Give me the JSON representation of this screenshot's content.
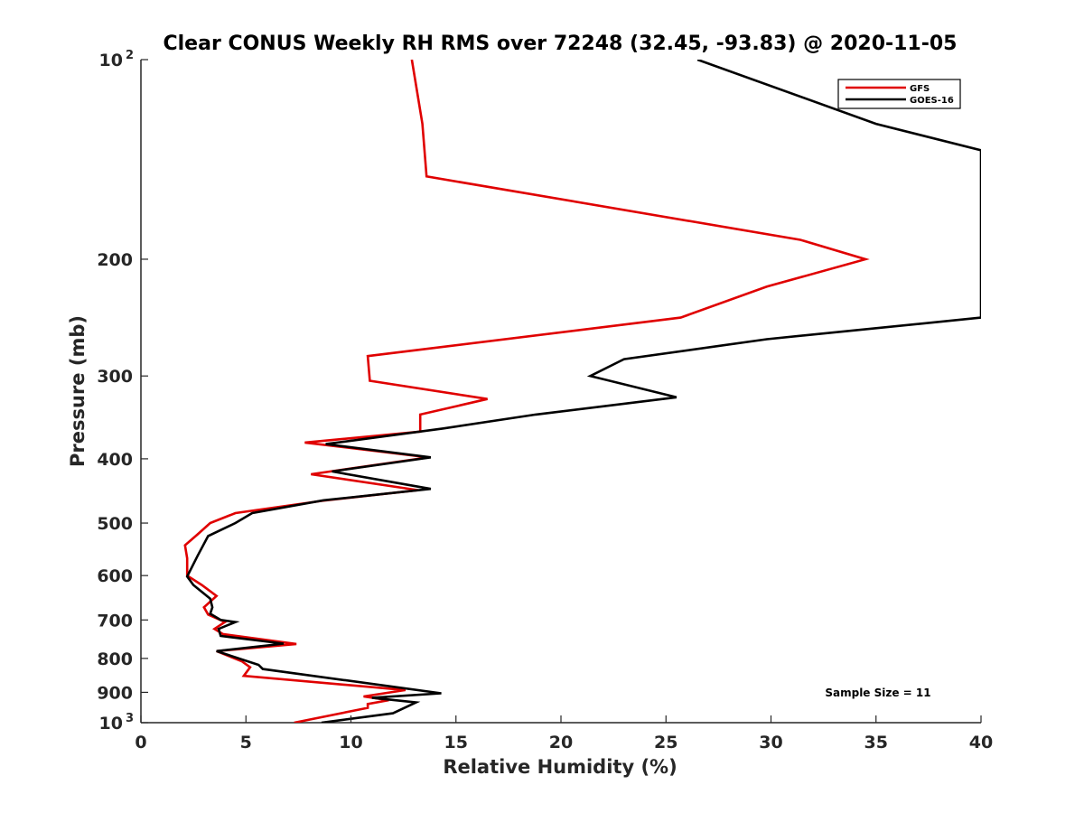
{
  "chart_data": {
    "type": "line",
    "title": "Clear CONUS Weekly RH RMS over 72248 (32.45, -93.83) @ 2020-11-05",
    "xlabel": "Relative Humidity (%)",
    "ylabel": "Pressure (mb)",
    "xlim": [
      0,
      40
    ],
    "ylim": [
      100,
      1000
    ],
    "y_scale": "log",
    "y_reversed": true,
    "grid": false,
    "legend_position": "top-right",
    "x_ticks": [
      0,
      5,
      10,
      15,
      20,
      25,
      30,
      35,
      40
    ],
    "x_tick_labels": [
      "0",
      "5",
      "10",
      "15",
      "20",
      "25",
      "30",
      "35",
      "40"
    ],
    "y_ticks": [
      100,
      200,
      300,
      400,
      500,
      600,
      700,
      800,
      900,
      1000
    ],
    "y_tick_labels": [
      {
        "base": "10",
        "exp": "2"
      },
      {
        "base": "200",
        "exp": ""
      },
      {
        "base": "300",
        "exp": ""
      },
      {
        "base": "400",
        "exp": ""
      },
      {
        "base": "500",
        "exp": ""
      },
      {
        "base": "600",
        "exp": ""
      },
      {
        "base": "700",
        "exp": ""
      },
      {
        "base": "800",
        "exp": ""
      },
      {
        "base": "900",
        "exp": ""
      },
      {
        "base": "10",
        "exp": "3"
      }
    ],
    "series": [
      {
        "name": "GFS",
        "color": "#e00000",
        "points": [
          [
            12.9,
            100
          ],
          [
            13.4,
            125
          ],
          [
            13.6,
            150
          ],
          [
            31.4,
            187
          ],
          [
            34.5,
            200
          ],
          [
            29.8,
            220
          ],
          [
            25.7,
            245
          ],
          [
            10.8,
            280
          ],
          [
            10.9,
            305
          ],
          [
            16.5,
            325
          ],
          [
            13.3,
            343
          ],
          [
            13.3,
            364
          ],
          [
            7.8,
            378
          ],
          [
            13.7,
            398
          ],
          [
            8.1,
            422
          ],
          [
            13.2,
            446
          ],
          [
            8.6,
            463
          ],
          [
            4.5,
            483
          ],
          [
            3.3,
            500
          ],
          [
            2.7,
            520
          ],
          [
            2.1,
            540
          ],
          [
            2.2,
            565
          ],
          [
            2.2,
            600
          ],
          [
            2.9,
            620
          ],
          [
            3.6,
            644
          ],
          [
            3.0,
            670
          ],
          [
            3.2,
            687
          ],
          [
            4.0,
            705
          ],
          [
            3.5,
            722
          ],
          [
            3.9,
            735
          ],
          [
            7.4,
            761
          ],
          [
            3.6,
            780
          ],
          [
            4.8,
            808
          ],
          [
            5.2,
            825
          ],
          [
            4.9,
            850
          ],
          [
            12.6,
            893
          ],
          [
            10.6,
            913
          ],
          [
            11.8,
            925
          ],
          [
            10.8,
            937
          ],
          [
            10.8,
            950
          ],
          [
            7.3,
            1000
          ]
        ]
      },
      {
        "name": "GOES-16",
        "color": "#000000",
        "points": [
          [
            26.5,
            100
          ],
          [
            35,
            125
          ],
          [
            40,
            137
          ],
          [
            40,
            245
          ],
          [
            29.8,
            264
          ],
          [
            23.0,
            283
          ],
          [
            21.4,
            300
          ],
          [
            25.5,
            323
          ],
          [
            18.8,
            343
          ],
          [
            14.4,
            360
          ],
          [
            8.8,
            380
          ],
          [
            13.8,
            398
          ],
          [
            9.1,
            418
          ],
          [
            13.8,
            444
          ],
          [
            8.7,
            462
          ],
          [
            5.3,
            483
          ],
          [
            4.5,
            500
          ],
          [
            3.2,
            523
          ],
          [
            2.7,
            560
          ],
          [
            2.2,
            602
          ],
          [
            2.5,
            620
          ],
          [
            3.3,
            650
          ],
          [
            3.4,
            670
          ],
          [
            3.3,
            685
          ],
          [
            3.8,
            700
          ],
          [
            4.5,
            705
          ],
          [
            3.7,
            722
          ],
          [
            3.8,
            740
          ],
          [
            6.8,
            760
          ],
          [
            3.6,
            780
          ],
          [
            5.6,
            818
          ],
          [
            5.8,
            830
          ],
          [
            14.3,
            903
          ],
          [
            11.0,
            917
          ],
          [
            13.1,
            932
          ],
          [
            12.0,
            968
          ],
          [
            8.6,
            1000
          ]
        ]
      }
    ],
    "legend": [
      "GFS",
      "GOES-16"
    ],
    "annotations": [
      "Sample Size = 11"
    ]
  }
}
